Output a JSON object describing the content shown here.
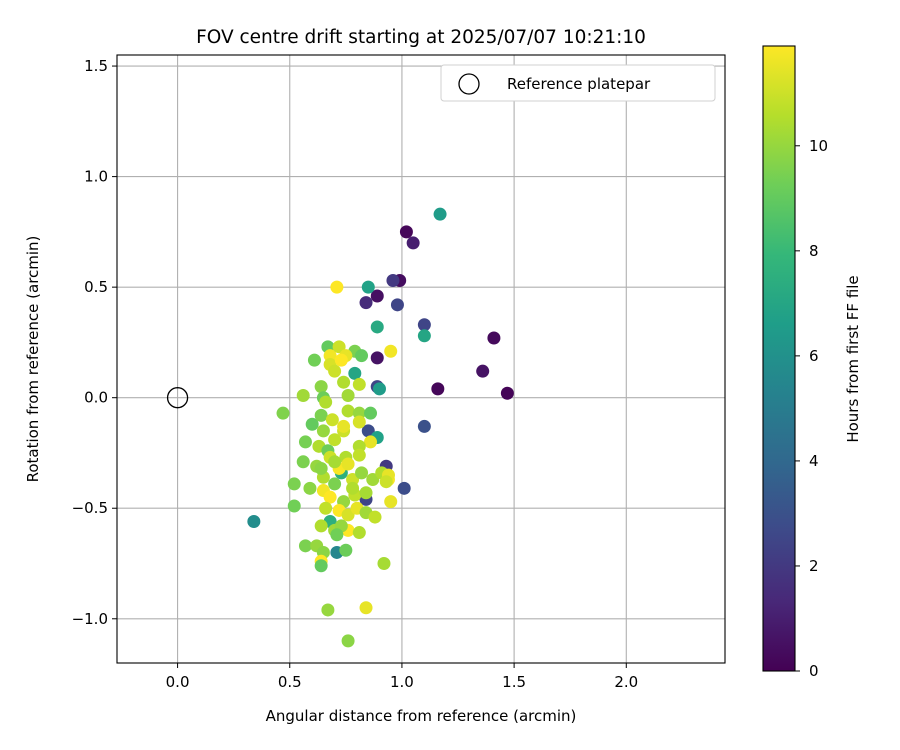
{
  "chart_data": {
    "type": "scatter",
    "title": "FOV centre drift starting at 2025/07/07 10:21:10",
    "xlabel": "Angular distance from reference (arcmin)",
    "ylabel": "Rotation from reference (arcmin)",
    "xlim": [
      -0.27,
      2.44
    ],
    "ylim": [
      -1.2,
      1.55
    ],
    "xticks": [
      0.0,
      0.5,
      1.0,
      1.5,
      2.0
    ],
    "xtick_labels": [
      "0.0",
      "0.5",
      "1.0",
      "1.5",
      "2.0"
    ],
    "yticks": [
      -1.0,
      -0.5,
      0.0,
      0.5,
      1.0,
      1.5
    ],
    "ytick_labels": [
      "−1.0",
      "−0.5",
      "0.0",
      "0.5",
      "1.0",
      "1.5"
    ],
    "grid": true,
    "legend": {
      "position": "top-right",
      "entries": [
        {
          "label": "Reference platepar",
          "marker": "open-circle"
        }
      ]
    },
    "reference_point": {
      "x": 0.0,
      "y": 0.0
    },
    "colorbar": {
      "label": "Hours from first FF file",
      "colormap": "viridis",
      "range": [
        0,
        11.9
      ],
      "ticks": [
        0,
        2,
        4,
        6,
        8,
        10
      ],
      "tick_labels": [
        "0",
        "2",
        "4",
        "6",
        "8",
        "10"
      ]
    },
    "colormap_stops": [
      "#440154",
      "#482878",
      "#3e4989",
      "#31688e",
      "#26828e",
      "#1f9e89",
      "#35b779",
      "#6ece58",
      "#b5de2b",
      "#fde725"
    ],
    "points": [
      {
        "x": 1.02,
        "y": 0.75,
        "h": 0.2
      },
      {
        "x": 1.05,
        "y": 0.7,
        "h": 1.0
      },
      {
        "x": 0.99,
        "y": 0.53,
        "h": 0.4
      },
      {
        "x": 0.96,
        "y": 0.53,
        "h": 2.0
      },
      {
        "x": 0.89,
        "y": 0.46,
        "h": 0.5
      },
      {
        "x": 0.84,
        "y": 0.43,
        "h": 1.5
      },
      {
        "x": 0.98,
        "y": 0.42,
        "h": 2.5
      },
      {
        "x": 1.41,
        "y": 0.27,
        "h": 0.3
      },
      {
        "x": 1.1,
        "y": 0.33,
        "h": 2.5
      },
      {
        "x": 1.36,
        "y": 0.12,
        "h": 0.6
      },
      {
        "x": 1.47,
        "y": 0.02,
        "h": 0.1
      },
      {
        "x": 1.16,
        "y": 0.04,
        "h": 0.2
      },
      {
        "x": 0.89,
        "y": 0.18,
        "h": 0.6
      },
      {
        "x": 0.89,
        "y": 0.05,
        "h": 2.5
      },
      {
        "x": 1.1,
        "y": -0.13,
        "h": 3.0
      },
      {
        "x": 1.01,
        "y": -0.41,
        "h": 2.8
      },
      {
        "x": 0.93,
        "y": -0.31,
        "h": 2.0
      },
      {
        "x": 0.84,
        "y": -0.46,
        "h": 2.5
      },
      {
        "x": 0.85,
        "y": -0.15,
        "h": 2.8
      },
      {
        "x": 1.17,
        "y": 0.83,
        "h": 6.5
      },
      {
        "x": 0.85,
        "y": 0.5,
        "h": 6.8
      },
      {
        "x": 1.1,
        "y": 0.28,
        "h": 7.0
      },
      {
        "x": 0.89,
        "y": 0.32,
        "h": 7.2
      },
      {
        "x": 0.79,
        "y": 0.11,
        "h": 7.0
      },
      {
        "x": 0.9,
        "y": 0.04,
        "h": 6.5
      },
      {
        "x": 0.89,
        "y": -0.18,
        "h": 6.8
      },
      {
        "x": 0.34,
        "y": -0.56,
        "h": 5.8
      },
      {
        "x": 0.71,
        "y": -0.7,
        "h": 5.5
      },
      {
        "x": 0.68,
        "y": -0.56,
        "h": 7.5
      },
      {
        "x": 0.73,
        "y": -0.34,
        "h": 7.5
      },
      {
        "x": 0.67,
        "y": 0.23,
        "h": 9.0
      },
      {
        "x": 0.79,
        "y": 0.21,
        "h": 9.5
      },
      {
        "x": 0.82,
        "y": 0.19,
        "h": 9.0
      },
      {
        "x": 0.61,
        "y": 0.17,
        "h": 9.3
      },
      {
        "x": 0.64,
        "y": 0.05,
        "h": 9.8
      },
      {
        "x": 0.65,
        "y": 0.0,
        "h": 9.2
      },
      {
        "x": 0.56,
        "y": 0.01,
        "h": 10.2
      },
      {
        "x": 0.47,
        "y": -0.07,
        "h": 9.6
      },
      {
        "x": 0.6,
        "y": -0.12,
        "h": 9.0
      },
      {
        "x": 0.64,
        "y": -0.08,
        "h": 9.5
      },
      {
        "x": 0.65,
        "y": -0.15,
        "h": 10.0
      },
      {
        "x": 0.57,
        "y": -0.2,
        "h": 9.4
      },
      {
        "x": 0.63,
        "y": -0.22,
        "h": 10.5
      },
      {
        "x": 0.67,
        "y": -0.24,
        "h": 9.2
      },
      {
        "x": 0.7,
        "y": -0.19,
        "h": 10.8
      },
      {
        "x": 0.74,
        "y": -0.15,
        "h": 11.0
      },
      {
        "x": 0.76,
        "y": -0.06,
        "h": 10.5
      },
      {
        "x": 0.81,
        "y": -0.07,
        "h": 10.0
      },
      {
        "x": 0.86,
        "y": -0.07,
        "h": 9.0
      },
      {
        "x": 0.81,
        "y": -0.11,
        "h": 11.2
      },
      {
        "x": 0.86,
        "y": -0.2,
        "h": 11.5
      },
      {
        "x": 0.81,
        "y": -0.22,
        "h": 10.5
      },
      {
        "x": 0.81,
        "y": -0.26,
        "h": 10.8
      },
      {
        "x": 0.75,
        "y": -0.27,
        "h": 10.5
      },
      {
        "x": 0.56,
        "y": -0.29,
        "h": 9.5
      },
      {
        "x": 0.62,
        "y": -0.31,
        "h": 10.0
      },
      {
        "x": 0.72,
        "y": -0.32,
        "h": 11.8
      },
      {
        "x": 0.76,
        "y": -0.3,
        "h": 11.5
      },
      {
        "x": 0.65,
        "y": -0.36,
        "h": 10.5
      },
      {
        "x": 0.7,
        "y": -0.39,
        "h": 9.5
      },
      {
        "x": 0.78,
        "y": -0.37,
        "h": 11.0
      },
      {
        "x": 0.82,
        "y": -0.34,
        "h": 10.0
      },
      {
        "x": 0.87,
        "y": -0.37,
        "h": 10.2
      },
      {
        "x": 0.91,
        "y": -0.34,
        "h": 10.5
      },
      {
        "x": 0.94,
        "y": -0.37,
        "h": 11.8
      },
      {
        "x": 0.94,
        "y": -0.35,
        "h": 11.5
      },
      {
        "x": 0.52,
        "y": -0.39,
        "h": 9.5
      },
      {
        "x": 0.59,
        "y": -0.41,
        "h": 9.8
      },
      {
        "x": 0.65,
        "y": -0.42,
        "h": 11.7
      },
      {
        "x": 0.68,
        "y": -0.45,
        "h": 11.9
      },
      {
        "x": 0.74,
        "y": -0.47,
        "h": 10.0
      },
      {
        "x": 0.79,
        "y": -0.44,
        "h": 10.8
      },
      {
        "x": 0.84,
        "y": -0.43,
        "h": 10.3
      },
      {
        "x": 0.95,
        "y": -0.47,
        "h": 11.5
      },
      {
        "x": 0.52,
        "y": -0.49,
        "h": 9.3
      },
      {
        "x": 0.66,
        "y": -0.5,
        "h": 10.8
      },
      {
        "x": 0.72,
        "y": -0.51,
        "h": 11.9
      },
      {
        "x": 0.76,
        "y": -0.53,
        "h": 11.2
      },
      {
        "x": 0.8,
        "y": -0.5,
        "h": 11.5
      },
      {
        "x": 0.84,
        "y": -0.52,
        "h": 10.2
      },
      {
        "x": 0.88,
        "y": -0.54,
        "h": 10.8
      },
      {
        "x": 0.64,
        "y": -0.58,
        "h": 10.5
      },
      {
        "x": 0.7,
        "y": -0.6,
        "h": 10.2
      },
      {
        "x": 0.76,
        "y": -0.6,
        "h": 11.9
      },
      {
        "x": 0.81,
        "y": -0.61,
        "h": 10.5
      },
      {
        "x": 0.73,
        "y": -0.58,
        "h": 10.0
      },
      {
        "x": 0.71,
        "y": -0.62,
        "h": 9.3
      },
      {
        "x": 0.57,
        "y": -0.67,
        "h": 9.5
      },
      {
        "x": 0.62,
        "y": -0.67,
        "h": 10.0
      },
      {
        "x": 0.65,
        "y": -0.7,
        "h": 9.8
      },
      {
        "x": 0.75,
        "y": -0.69,
        "h": 9.2
      },
      {
        "x": 0.64,
        "y": -0.74,
        "h": 11.9
      },
      {
        "x": 0.64,
        "y": -0.76,
        "h": 9.0
      },
      {
        "x": 0.92,
        "y": -0.75,
        "h": 10.3
      },
      {
        "x": 0.67,
        "y": -0.96,
        "h": 10.0
      },
      {
        "x": 0.84,
        "y": -0.95,
        "h": 11.5
      },
      {
        "x": 0.76,
        "y": -1.1,
        "h": 9.8
      },
      {
        "x": 0.71,
        "y": 0.5,
        "h": 11.9
      },
      {
        "x": 0.68,
        "y": 0.19,
        "h": 11.7
      },
      {
        "x": 0.72,
        "y": 0.23,
        "h": 11.0
      },
      {
        "x": 0.75,
        "y": 0.19,
        "h": 11.5
      },
      {
        "x": 0.68,
        "y": 0.15,
        "h": 11.2
      },
      {
        "x": 0.7,
        "y": 0.12,
        "h": 11.0
      },
      {
        "x": 0.73,
        "y": 0.17,
        "h": 11.9
      },
      {
        "x": 0.95,
        "y": 0.21,
        "h": 11.7
      },
      {
        "x": 0.74,
        "y": 0.07,
        "h": 10.5
      },
      {
        "x": 0.81,
        "y": 0.06,
        "h": 10.8
      },
      {
        "x": 0.76,
        "y": 0.01,
        "h": 10.2
      },
      {
        "x": 0.66,
        "y": -0.02,
        "h": 10.5
      },
      {
        "x": 0.69,
        "y": -0.1,
        "h": 11.0
      },
      {
        "x": 0.74,
        "y": -0.13,
        "h": 11.5
      },
      {
        "x": 0.68,
        "y": -0.27,
        "h": 11.0
      },
      {
        "x": 0.7,
        "y": -0.29,
        "h": 10.3
      },
      {
        "x": 0.64,
        "y": -0.32,
        "h": 9.8
      },
      {
        "x": 0.78,
        "y": -0.41,
        "h": 10.5
      },
      {
        "x": 0.93,
        "y": -0.38,
        "h": 11.0
      }
    ]
  }
}
